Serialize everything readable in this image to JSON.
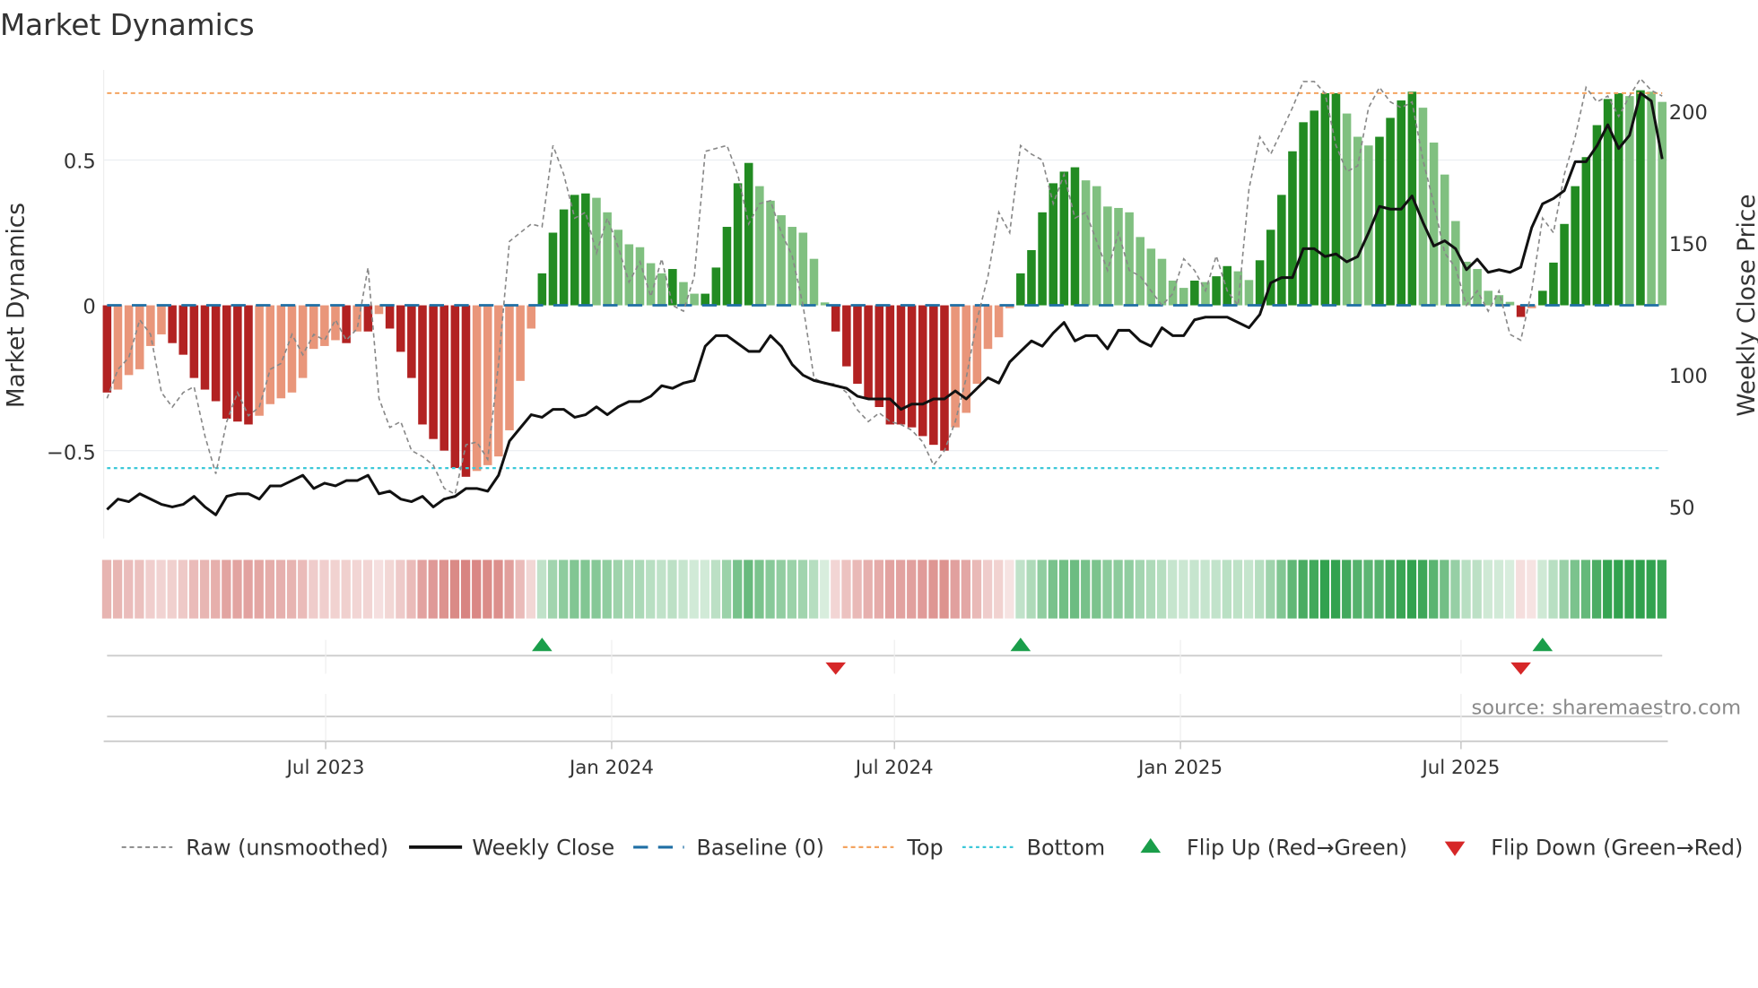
{
  "chart_data": {
    "type": "bar",
    "title": "Market Dynamics",
    "ylabel": "Market Dynamics",
    "y2label": "Weekly Close Price",
    "ylim": [
      -0.8,
      0.8
    ],
    "y2lim": [
      40,
      220
    ],
    "yticks": [
      {
        "value": 0.5,
        "label": "0.5"
      },
      {
        "value": 0,
        "label": "0"
      },
      {
        "value": -0.5,
        "label": "−0.5"
      }
    ],
    "y2ticks": [
      {
        "value": 200,
        "label": "200"
      },
      {
        "value": 150,
        "label": "150"
      },
      {
        "value": 100,
        "label": "100"
      },
      {
        "value": 50,
        "label": "50"
      }
    ],
    "xticks": [
      {
        "label": "Jul 2023",
        "week_index": 20.1
      },
      {
        "label": "Jan 2024",
        "week_index": 46.4
      },
      {
        "label": "Jul 2024",
        "week_index": 72.4
      },
      {
        "label": "Jan 2025",
        "week_index": 98.7
      },
      {
        "label": "Jul 2025",
        "week_index": 124.5
      }
    ],
    "top_level": 0.73,
    "bottom_level": -0.56,
    "baseline": 0,
    "smoothed": [
      -0.3,
      -0.29,
      -0.24,
      -0.22,
      -0.14,
      -0.1,
      -0.13,
      -0.17,
      -0.25,
      -0.29,
      -0.33,
      -0.39,
      -0.4,
      -0.41,
      -0.38,
      -0.34,
      -0.32,
      -0.3,
      -0.25,
      -0.15,
      -0.14,
      -0.12,
      -0.13,
      -0.09,
      -0.09,
      -0.03,
      -0.08,
      -0.16,
      -0.25,
      -0.41,
      -0.46,
      -0.5,
      -0.56,
      -0.59,
      -0.57,
      -0.55,
      -0.52,
      -0.43,
      -0.26,
      -0.08,
      0.11,
      0.25,
      0.33,
      0.38,
      0.385,
      0.37,
      0.32,
      0.26,
      0.21,
      0.2,
      0.145,
      0.11,
      0.125,
      0.08,
      0.04,
      0.04,
      0.13,
      0.27,
      0.42,
      0.49,
      0.41,
      0.36,
      0.31,
      0.27,
      0.25,
      0.16,
      0.01,
      -0.09,
      -0.21,
      -0.27,
      -0.32,
      -0.35,
      -0.41,
      -0.41,
      -0.42,
      -0.45,
      -0.48,
      -0.5,
      -0.42,
      -0.37,
      -0.27,
      -0.15,
      -0.11,
      -0.01,
      0.11,
      0.19,
      0.32,
      0.42,
      0.46,
      0.475,
      0.43,
      0.41,
      0.34,
      0.335,
      0.32,
      0.235,
      0.195,
      0.16,
      0.085,
      0.06,
      0.085,
      0.08,
      0.1,
      0.135,
      0.117,
      0.087,
      0.155,
      0.26,
      0.38,
      0.53,
      0.63,
      0.67,
      0.73,
      0.73,
      0.66,
      0.58,
      0.55,
      0.58,
      0.645,
      0.705,
      0.735,
      0.68,
      0.56,
      0.45,
      0.29,
      0.15,
      0.125,
      0.05,
      0.035,
      0.012,
      -0.04,
      -0.01,
      0.05,
      0.147,
      0.28,
      0.41,
      0.51,
      0.62,
      0.71,
      0.73,
      0.72,
      0.74,
      0.735,
      0.7
    ],
    "raw": [
      -0.32,
      -0.22,
      -0.18,
      -0.05,
      -0.1,
      -0.3,
      -0.35,
      -0.3,
      -0.28,
      -0.45,
      -0.58,
      -0.4,
      -0.3,
      -0.38,
      -0.35,
      -0.22,
      -0.2,
      -0.1,
      -0.17,
      -0.1,
      -0.12,
      -0.05,
      -0.12,
      -0.08,
      0.13,
      -0.32,
      -0.42,
      -0.4,
      -0.5,
      -0.52,
      -0.55,
      -0.63,
      -0.65,
      -0.48,
      -0.47,
      -0.53,
      -0.2,
      0.22,
      0.25,
      0.28,
      0.27,
      0.55,
      0.45,
      0.3,
      0.32,
      0.18,
      0.3,
      0.2,
      0.08,
      0.15,
      0.03,
      0.16,
      0.0,
      -0.02,
      0.1,
      0.53,
      0.54,
      0.55,
      0.45,
      0.28,
      0.35,
      0.36,
      0.25,
      0.17,
      0.0,
      -0.25,
      -0.27,
      -0.27,
      -0.3,
      -0.36,
      -0.4,
      -0.37,
      -0.4,
      -0.41,
      -0.43,
      -0.47,
      -0.55,
      -0.5,
      -0.4,
      -0.25,
      -0.05,
      0.1,
      0.32,
      0.25,
      0.55,
      0.52,
      0.5,
      0.35,
      0.45,
      0.3,
      0.32,
      0.22,
      0.12,
      0.25,
      0.12,
      0.1,
      0.05,
      0.0,
      0.04,
      0.16,
      0.12,
      0.05,
      0.17,
      0.05,
      0.0,
      0.4,
      0.58,
      0.52,
      0.6,
      0.68,
      0.77,
      0.77,
      0.73,
      0.55,
      0.46,
      0.48,
      0.68,
      0.75,
      0.7,
      0.68,
      0.7,
      0.5,
      0.35,
      0.18,
      0.13,
      0.0,
      0.05,
      -0.02,
      0.05,
      -0.1,
      -0.12,
      0.05,
      0.3,
      0.25,
      0.45,
      0.58,
      0.75,
      0.7,
      0.72,
      0.65,
      0.72,
      0.78,
      0.74,
      0.72
    ],
    "weekly_close": [
      49,
      53,
      52,
      55,
      53,
      51,
      50,
      51,
      54,
      50,
      47,
      54,
      55,
      55,
      53,
      58,
      58,
      60,
      62,
      57,
      59,
      58,
      60,
      60,
      62,
      55,
      56,
      53,
      52,
      54,
      50,
      53,
      54,
      57,
      57,
      56,
      62,
      75,
      80,
      85,
      84,
      87,
      87,
      84,
      85,
      88,
      85,
      88,
      90,
      90,
      92,
      96,
      95,
      97,
      98,
      111,
      115,
      115,
      112,
      109,
      109,
      115,
      111,
      104,
      100,
      98,
      97,
      96,
      95,
      92,
      91,
      91,
      91,
      87,
      89,
      89,
      91,
      91,
      94,
      91,
      95,
      99,
      97,
      105,
      109,
      113,
      111,
      116,
      120,
      113,
      115,
      115,
      110,
      117,
      117,
      113,
      111,
      118,
      115,
      115,
      121,
      122,
      122,
      122,
      120,
      118,
      123,
      135,
      137,
      137,
      148,
      148,
      145,
      146,
      143,
      145,
      154,
      164,
      163,
      163,
      168,
      158,
      149,
      151,
      148,
      140,
      144,
      139,
      140,
      139,
      141,
      156,
      165,
      167,
      170,
      181,
      181,
      187,
      195,
      186,
      191,
      207,
      204,
      182
    ],
    "flips_up_week_index": [
      40,
      84,
      132
    ],
    "flips_down_week_index": [
      67,
      130
    ],
    "legend": {
      "position": "bottom",
      "items": [
        "Raw (unsmoothed)",
        "Weekly Close",
        "Baseline (0)",
        "Top",
        "Bottom",
        "Flip Up (Red→Green)",
        "Flip Down (Green→Red)"
      ]
    },
    "source": "source: sharemaestro.com",
    "colors": {
      "green_strong": "#228b22",
      "green_light": "#80c080",
      "red_strong": "#b22222",
      "red_light": "#e9967a",
      "top": "#f4a460",
      "bottom": "#3cc8d8",
      "baseline": "#1f6fa5",
      "flip_up": "#1a9e4a",
      "flip_down": "#d62728",
      "price": "#111111",
      "raw": "#888888"
    }
  }
}
